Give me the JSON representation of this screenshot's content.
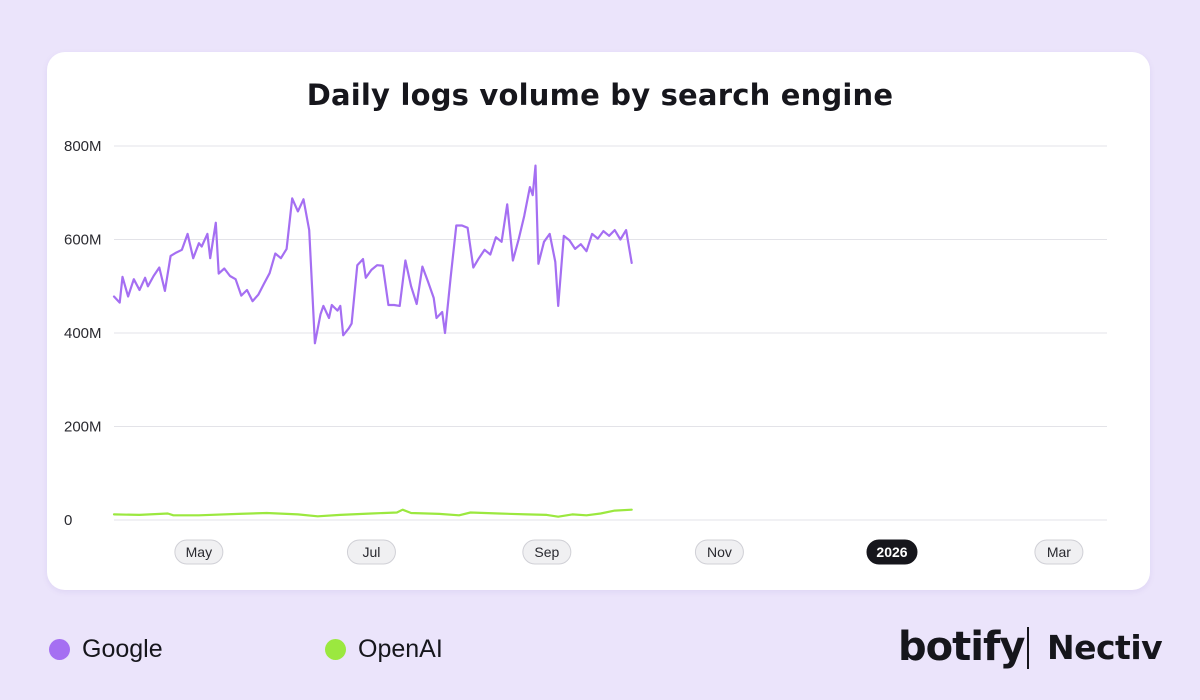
{
  "colors": {
    "background": "#ebe4fb",
    "card": "#ffffff",
    "google": "#a56ff2",
    "openai": "#9be83f",
    "grid": "#e3e3e8",
    "highlight_tick_bg": "#16161c"
  },
  "legend": [
    {
      "label": "Google",
      "color": "#a56ff2"
    },
    {
      "label": "OpenAI",
      "color": "#9be83f"
    }
  ],
  "branding": {
    "left": "botify",
    "right": "Nectiv"
  },
  "chart_data": {
    "type": "line",
    "title": "Daily logs volume by search engine",
    "xlabel": "",
    "ylabel": "",
    "ylim": [
      0,
      800
    ],
    "y_unit": "M",
    "y_ticks": [
      {
        "value": 0,
        "label": "0"
      },
      {
        "value": 200,
        "label": "200M"
      },
      {
        "value": 400,
        "label": "400M"
      },
      {
        "value": 600,
        "label": "600M"
      },
      {
        "value": 800,
        "label": "800M"
      }
    ],
    "x_range": [
      "2025-04-01",
      "2026-03-18"
    ],
    "x_ticks": [
      {
        "date": "2025-05-01",
        "label": "May",
        "highlight": false
      },
      {
        "date": "2025-07-01",
        "label": "Jul",
        "highlight": false
      },
      {
        "date": "2025-09-01",
        "label": "Sep",
        "highlight": false
      },
      {
        "date": "2025-11-01",
        "label": "Nov",
        "highlight": false
      },
      {
        "date": "2026-01-01",
        "label": "2026",
        "highlight": true
      },
      {
        "date": "2026-03-01",
        "label": "Mar",
        "highlight": false
      }
    ],
    "grid": true,
    "legend_position": "bottom-left",
    "series": [
      {
        "name": "Google",
        "color": "#a56ff2",
        "points": [
          [
            "2025-04-01",
            478
          ],
          [
            "2025-04-03",
            465
          ],
          [
            "2025-04-04",
            520
          ],
          [
            "2025-04-06",
            478
          ],
          [
            "2025-04-08",
            515
          ],
          [
            "2025-04-10",
            492
          ],
          [
            "2025-04-12",
            518
          ],
          [
            "2025-04-13",
            500
          ],
          [
            "2025-04-15",
            522
          ],
          [
            "2025-04-17",
            540
          ],
          [
            "2025-04-19",
            490
          ],
          [
            "2025-04-21",
            565
          ],
          [
            "2025-04-23",
            572
          ],
          [
            "2025-04-25",
            578
          ],
          [
            "2025-04-27",
            612
          ],
          [
            "2025-04-29",
            560
          ],
          [
            "2025-05-01",
            592
          ],
          [
            "2025-05-02",
            585
          ],
          [
            "2025-05-04",
            612
          ],
          [
            "2025-05-05",
            560
          ],
          [
            "2025-05-07",
            636
          ],
          [
            "2025-05-08",
            527
          ],
          [
            "2025-05-10",
            538
          ],
          [
            "2025-05-12",
            522
          ],
          [
            "2025-05-14",
            515
          ],
          [
            "2025-05-16",
            480
          ],
          [
            "2025-05-18",
            492
          ],
          [
            "2025-05-20",
            468
          ],
          [
            "2025-05-22",
            482
          ],
          [
            "2025-05-24",
            505
          ],
          [
            "2025-05-26",
            528
          ],
          [
            "2025-05-28",
            570
          ],
          [
            "2025-05-30",
            560
          ],
          [
            "2025-06-01",
            580
          ],
          [
            "2025-06-03",
            688
          ],
          [
            "2025-06-05",
            660
          ],
          [
            "2025-06-07",
            686
          ],
          [
            "2025-06-09",
            620
          ],
          [
            "2025-06-11",
            378
          ],
          [
            "2025-06-13",
            440
          ],
          [
            "2025-06-14",
            458
          ],
          [
            "2025-06-16",
            432
          ],
          [
            "2025-06-17",
            460
          ],
          [
            "2025-06-19",
            448
          ],
          [
            "2025-06-20",
            458
          ],
          [
            "2025-06-21",
            395
          ],
          [
            "2025-06-23",
            410
          ],
          [
            "2025-06-24",
            420
          ],
          [
            "2025-06-26",
            545
          ],
          [
            "2025-06-28",
            558
          ],
          [
            "2025-06-29",
            518
          ],
          [
            "2025-07-01",
            535
          ],
          [
            "2025-07-03",
            545
          ],
          [
            "2025-07-05",
            544
          ],
          [
            "2025-07-07",
            460
          ],
          [
            "2025-07-09",
            460
          ],
          [
            "2025-07-11",
            458
          ],
          [
            "2025-07-13",
            555
          ],
          [
            "2025-07-15",
            500
          ],
          [
            "2025-07-17",
            462
          ],
          [
            "2025-07-19",
            542
          ],
          [
            "2025-07-21",
            510
          ],
          [
            "2025-07-23",
            475
          ],
          [
            "2025-07-24",
            432
          ],
          [
            "2025-07-26",
            445
          ],
          [
            "2025-07-27",
            400
          ],
          [
            "2025-07-29",
            520
          ],
          [
            "2025-07-31",
            630
          ],
          [
            "2025-08-02",
            630
          ],
          [
            "2025-08-04",
            625
          ],
          [
            "2025-08-06",
            540
          ],
          [
            "2025-08-08",
            560
          ],
          [
            "2025-08-10",
            578
          ],
          [
            "2025-08-12",
            568
          ],
          [
            "2025-08-14",
            605
          ],
          [
            "2025-08-16",
            595
          ],
          [
            "2025-08-18",
            675
          ],
          [
            "2025-08-20",
            555
          ],
          [
            "2025-08-22",
            600
          ],
          [
            "2025-08-24",
            650
          ],
          [
            "2025-08-26",
            712
          ],
          [
            "2025-08-27",
            695
          ],
          [
            "2025-08-28",
            758
          ],
          [
            "2025-08-29",
            548
          ],
          [
            "2025-08-31",
            595
          ],
          [
            "2025-09-02",
            612
          ],
          [
            "2025-09-04",
            552
          ],
          [
            "2025-09-05",
            458
          ],
          [
            "2025-09-07",
            608
          ],
          [
            "2025-09-09",
            598
          ],
          [
            "2025-09-11",
            580
          ],
          [
            "2025-09-13",
            590
          ],
          [
            "2025-09-15",
            575
          ],
          [
            "2025-09-17",
            612
          ],
          [
            "2025-09-19",
            602
          ],
          [
            "2025-09-21",
            618
          ],
          [
            "2025-09-23",
            608
          ],
          [
            "2025-09-25",
            620
          ],
          [
            "2025-09-27",
            600
          ],
          [
            "2025-09-29",
            620
          ],
          [
            "2025-10-01",
            550
          ]
        ]
      },
      {
        "name": "OpenAI",
        "color": "#9be83f",
        "points": [
          [
            "2025-04-01",
            12
          ],
          [
            "2025-04-10",
            11
          ],
          [
            "2025-04-20",
            14
          ],
          [
            "2025-04-22",
            10
          ],
          [
            "2025-05-01",
            10
          ],
          [
            "2025-05-15",
            13
          ],
          [
            "2025-05-25",
            15
          ],
          [
            "2025-06-05",
            12
          ],
          [
            "2025-06-12",
            8
          ],
          [
            "2025-06-20",
            11
          ],
          [
            "2025-07-01",
            14
          ],
          [
            "2025-07-10",
            16
          ],
          [
            "2025-07-12",
            22
          ],
          [
            "2025-07-15",
            15
          ],
          [
            "2025-07-25",
            13
          ],
          [
            "2025-08-01",
            10
          ],
          [
            "2025-08-05",
            16
          ],
          [
            "2025-08-15",
            14
          ],
          [
            "2025-08-25",
            12
          ],
          [
            "2025-09-01",
            11
          ],
          [
            "2025-09-05",
            7
          ],
          [
            "2025-09-10",
            12
          ],
          [
            "2025-09-15",
            10
          ],
          [
            "2025-09-20",
            14
          ],
          [
            "2025-09-25",
            20
          ],
          [
            "2025-10-01",
            22
          ]
        ]
      }
    ]
  }
}
